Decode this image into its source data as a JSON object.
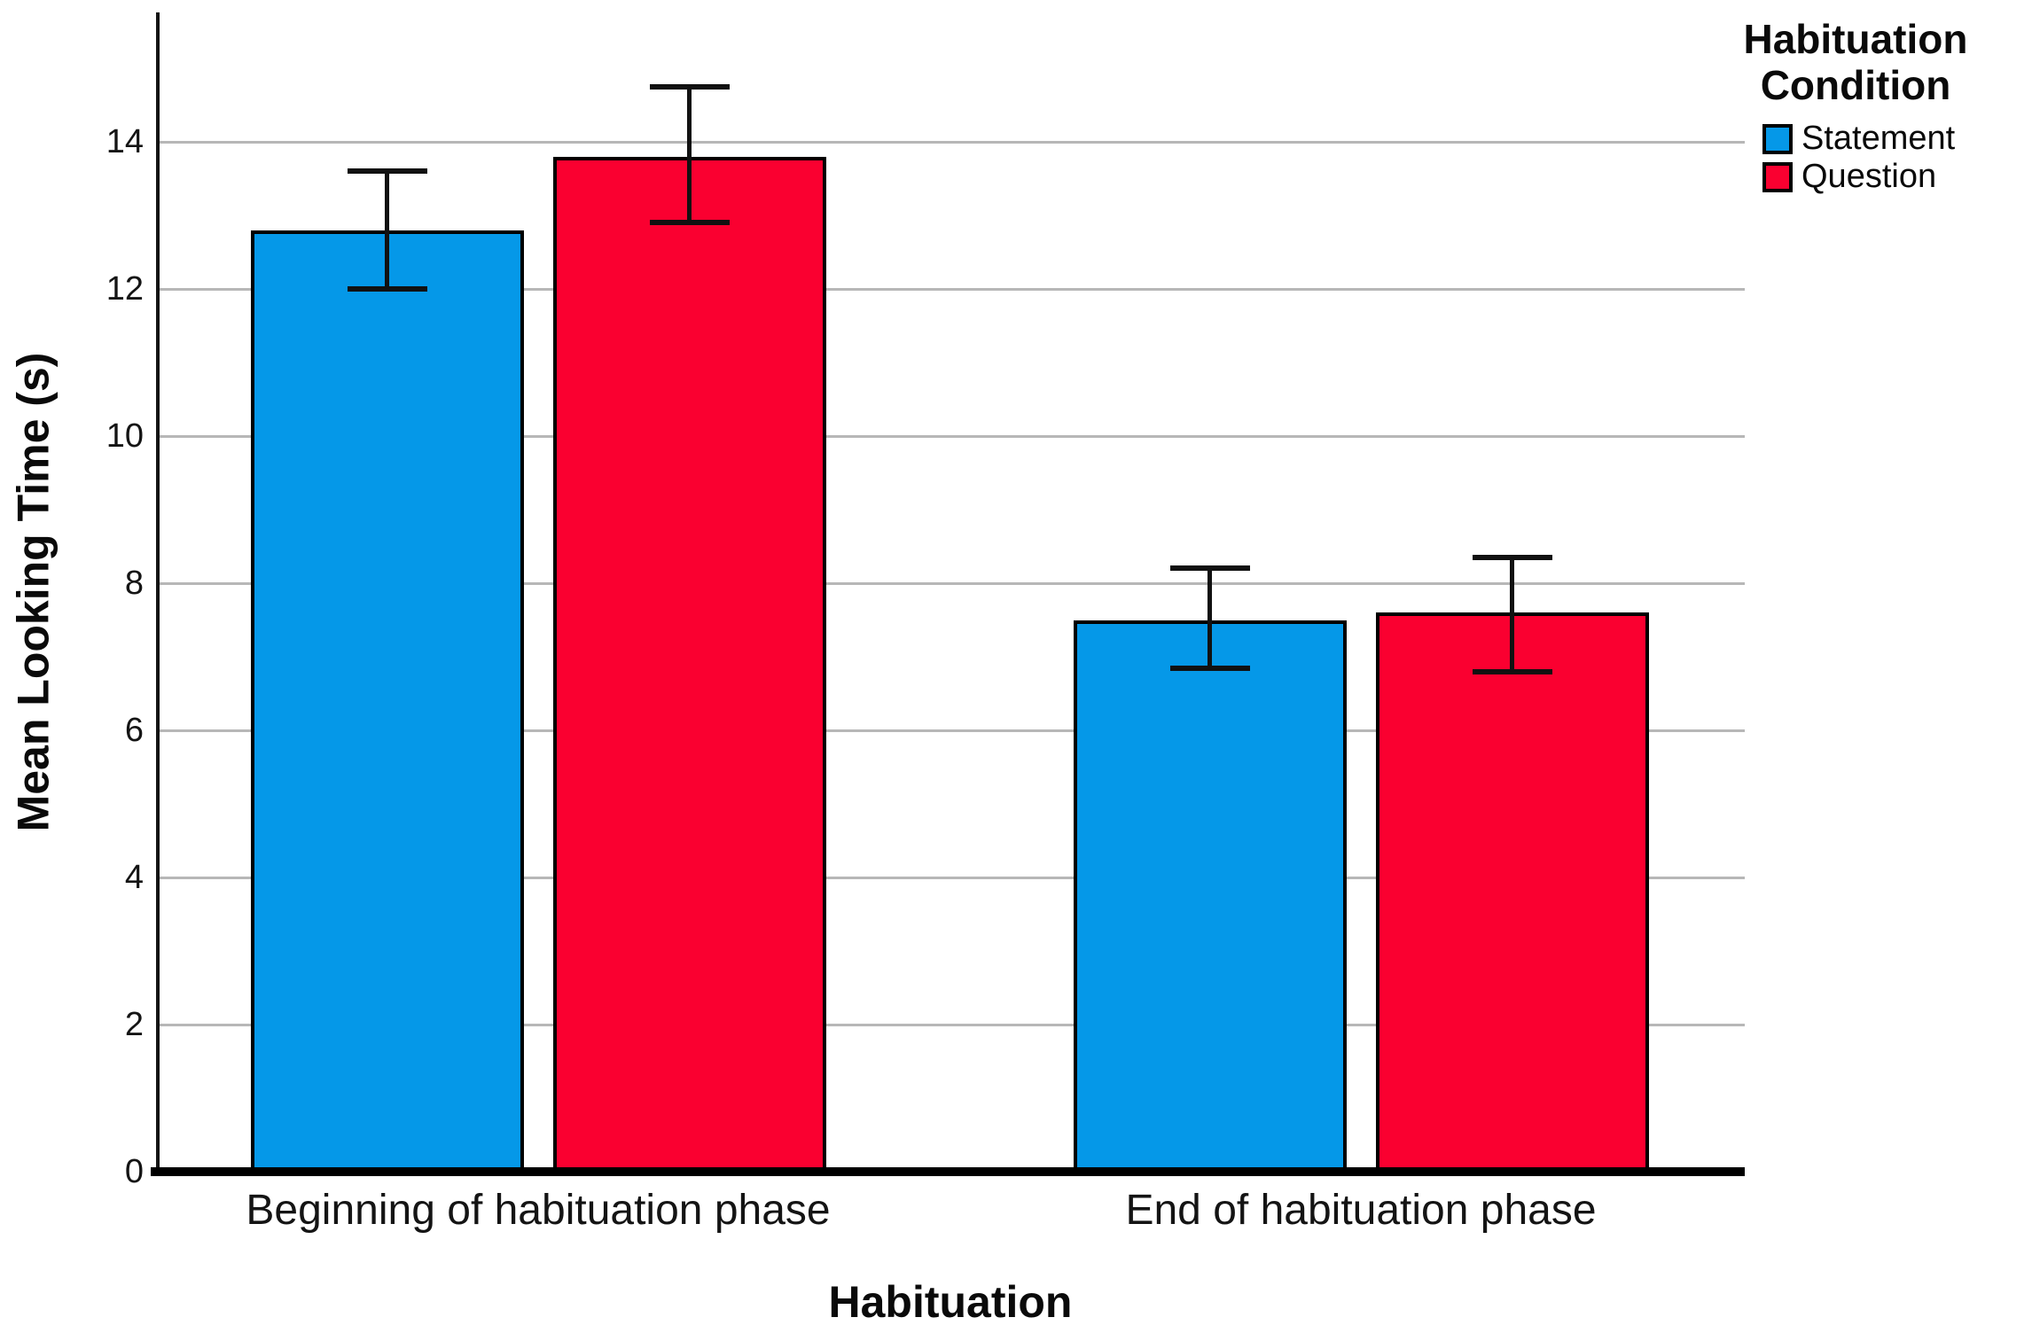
{
  "chart_data": {
    "type": "bar",
    "title": "",
    "xlabel": "Habituation",
    "ylabel": "Mean Looking Time (s)",
    "categories": [
      "Beginning of habituation phase",
      "End of habituation phase"
    ],
    "series": [
      {
        "name": "Statement",
        "color": "#0598E8",
        "values": [
          12.8,
          7.5
        ],
        "error_low": [
          12.0,
          6.85
        ],
        "error_high": [
          13.6,
          8.2
        ]
      },
      {
        "name": "Question",
        "color": "#FA0030",
        "values": [
          13.8,
          7.6
        ],
        "error_low": [
          12.9,
          6.8
        ],
        "error_high": [
          14.75,
          8.35
        ]
      }
    ],
    "ylim": [
      0,
      15.76
    ],
    "yticks": [
      0,
      2,
      4,
      6,
      8,
      10,
      12,
      14
    ],
    "grid": "horizontal",
    "gridline_color": "#b7b7b7",
    "error_bars": true,
    "legend": {
      "position": "top-right",
      "title_lines": [
        "Habituation",
        "Condition"
      ]
    }
  }
}
